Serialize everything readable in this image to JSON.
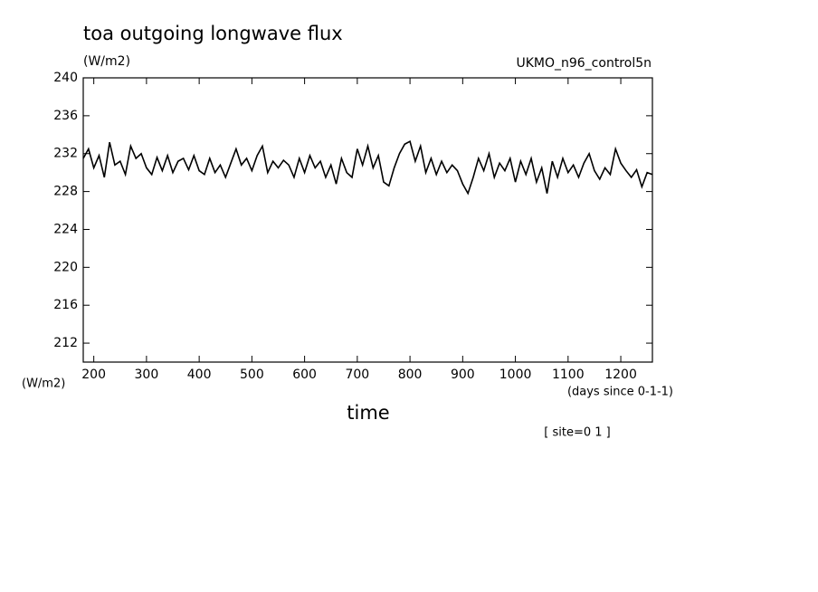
{
  "chart_data": {
    "type": "line",
    "title": "toa outgoing longwave flux",
    "y_unit_top": "(W/m2)",
    "dataset": "UKMO_n96_control5n",
    "y_unit_bottom": "(W/m2)",
    "x_unit": "(days since 0-1-1)",
    "x_label": "time",
    "footnote": "[ site=0 1 ]",
    "color": "#000000",
    "xlim": [
      180,
      1260
    ],
    "ylim": [
      210,
      240
    ],
    "xticks": [
      200,
      300,
      400,
      500,
      600,
      700,
      800,
      900,
      1000,
      1100,
      1200
    ],
    "yticks": [
      212,
      216,
      220,
      224,
      228,
      232,
      236,
      240
    ],
    "x": [
      180,
      190,
      200,
      210,
      220,
      230,
      240,
      250,
      260,
      270,
      280,
      290,
      300,
      310,
      320,
      330,
      340,
      350,
      360,
      370,
      380,
      390,
      400,
      410,
      420,
      430,
      440,
      450,
      460,
      470,
      480,
      490,
      500,
      510,
      520,
      530,
      540,
      550,
      560,
      570,
      580,
      590,
      600,
      610,
      620,
      630,
      640,
      650,
      660,
      670,
      680,
      690,
      700,
      710,
      720,
      730,
      740,
      750,
      760,
      770,
      780,
      790,
      800,
      810,
      820,
      830,
      840,
      850,
      860,
      870,
      880,
      890,
      900,
      910,
      920,
      930,
      940,
      950,
      960,
      970,
      980,
      990,
      1000,
      1010,
      1020,
      1030,
      1040,
      1050,
      1060,
      1070,
      1080,
      1090,
      1100,
      1110,
      1120,
      1130,
      1140,
      1150,
      1160,
      1170,
      1180,
      1190,
      1200,
      1210,
      1220,
      1230,
      1240,
      1250,
      1260
    ],
    "values": [
      231.5,
      232.5,
      230.5,
      231.8,
      229.5,
      233.2,
      230.8,
      231.2,
      229.8,
      232.8,
      231.5,
      232.0,
      230.5,
      229.8,
      231.6,
      230.2,
      231.8,
      230.0,
      231.2,
      231.5,
      230.3,
      231.8,
      230.2,
      229.8,
      231.5,
      230.0,
      230.8,
      229.5,
      231.0,
      232.5,
      230.8,
      231.5,
      230.2,
      231.8,
      232.8,
      230.0,
      231.2,
      230.5,
      231.3,
      230.8,
      229.5,
      231.5,
      230.0,
      231.8,
      230.5,
      231.2,
      229.5,
      230.8,
      228.8,
      231.5,
      230.0,
      229.5,
      232.5,
      230.8,
      232.8,
      230.5,
      231.8,
      229.0,
      228.6,
      230.5,
      232.0,
      233.0,
      233.3,
      231.2,
      232.8,
      230.0,
      231.5,
      229.8,
      231.2,
      230.0,
      230.8,
      230.2,
      228.8,
      227.8,
      229.5,
      231.5,
      230.2,
      232.0,
      229.5,
      231.0,
      230.2,
      231.5,
      229.0,
      231.2,
      229.8,
      231.5,
      229.0,
      230.5,
      227.8,
      231.2,
      229.5,
      231.5,
      230.0,
      230.8,
      229.5,
      231.0,
      232.0,
      230.2,
      229.3,
      230.5,
      229.8,
      232.5,
      231.0,
      230.2,
      229.5,
      230.3,
      228.5,
      230.0,
      229.8
    ]
  }
}
